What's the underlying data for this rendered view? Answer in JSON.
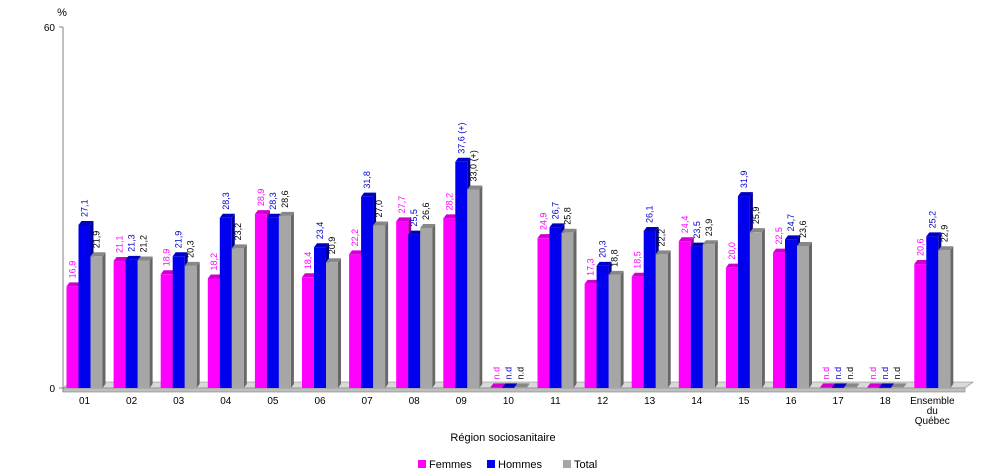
{
  "chart_data": {
    "type": "bar",
    "yunit": "%",
    "ylim": [
      0,
      60
    ],
    "yticks": [
      "0",
      "60"
    ],
    "xlabel": "Région sociosanitaire",
    "categories": [
      "01",
      "02",
      "03",
      "04",
      "05",
      "06",
      "07",
      "08",
      "09",
      "10",
      "11",
      "12",
      "13",
      "14",
      "15",
      "16",
      "17",
      "18",
      "Ensemble du Québec"
    ],
    "category_lines": [
      [
        "01"
      ],
      [
        "02"
      ],
      [
        "03"
      ],
      [
        "04"
      ],
      [
        "05"
      ],
      [
        "06"
      ],
      [
        "07"
      ],
      [
        "08"
      ],
      [
        "09"
      ],
      [
        "10"
      ],
      [
        "11"
      ],
      [
        "12"
      ],
      [
        "13"
      ],
      [
        "14"
      ],
      [
        "15"
      ],
      [
        "16"
      ],
      [
        "17"
      ],
      [
        "18"
      ],
      [
        "Ensemble",
        "du",
        "Québec"
      ]
    ],
    "series": [
      {
        "name": "Femmes",
        "color": "#ff00ff",
        "label_color": "#ff00ff",
        "values": [
          16.9,
          21.1,
          18.9,
          18.2,
          28.9,
          18.4,
          22.2,
          27.7,
          28.2,
          null,
          24.9,
          17.3,
          18.5,
          24.4,
          20.0,
          22.5,
          null,
          null,
          20.6
        ],
        "labels": [
          "16,9",
          "21,1",
          "18,9",
          "18,2",
          "28,9",
          "18,4",
          "22,2",
          "27,7",
          "28,2",
          "n.d",
          "24,9",
          "17,3",
          "18,5",
          "24,4",
          "20,0",
          "22,5",
          "n.d",
          "n.d",
          "20,6"
        ]
      },
      {
        "name": "Hommes",
        "color": "#0000ee",
        "label_color": "#0000cc",
        "values": [
          27.1,
          21.3,
          21.9,
          28.3,
          28.3,
          23.4,
          31.8,
          25.5,
          37.6,
          null,
          26.7,
          20.3,
          26.1,
          23.5,
          31.9,
          24.7,
          null,
          null,
          25.2
        ],
        "labels": [
          "27,1",
          "21,3",
          "21,9",
          "28,3",
          "28,3",
          "23,4",
          "31,8",
          "25,5",
          "37,6 (+)",
          "n.d",
          "26,7",
          "20,3",
          "26,1",
          "23,5",
          "31,9",
          "24,7",
          "n.d",
          "n.d",
          "25,2"
        ]
      },
      {
        "name": "Total",
        "color": "#a6a6a6",
        "label_color": "#000000",
        "values": [
          21.9,
          21.2,
          20.3,
          23.2,
          28.6,
          20.9,
          27.0,
          26.6,
          33.0,
          null,
          25.8,
          18.8,
          22.2,
          23.9,
          25.9,
          23.6,
          null,
          null,
          22.9
        ],
        "labels": [
          "21,9",
          "21,2",
          "20,3",
          "23,2",
          "28,6",
          "20,9",
          "27,0",
          "26,6",
          "33,0 (+)",
          "n.d",
          "25,8",
          "18,8",
          "22,2",
          "23,9",
          "25,9",
          "23,6",
          "n.d",
          "n.d",
          "22,9"
        ]
      }
    ],
    "grid": false,
    "legend_position": "bottom-center"
  }
}
